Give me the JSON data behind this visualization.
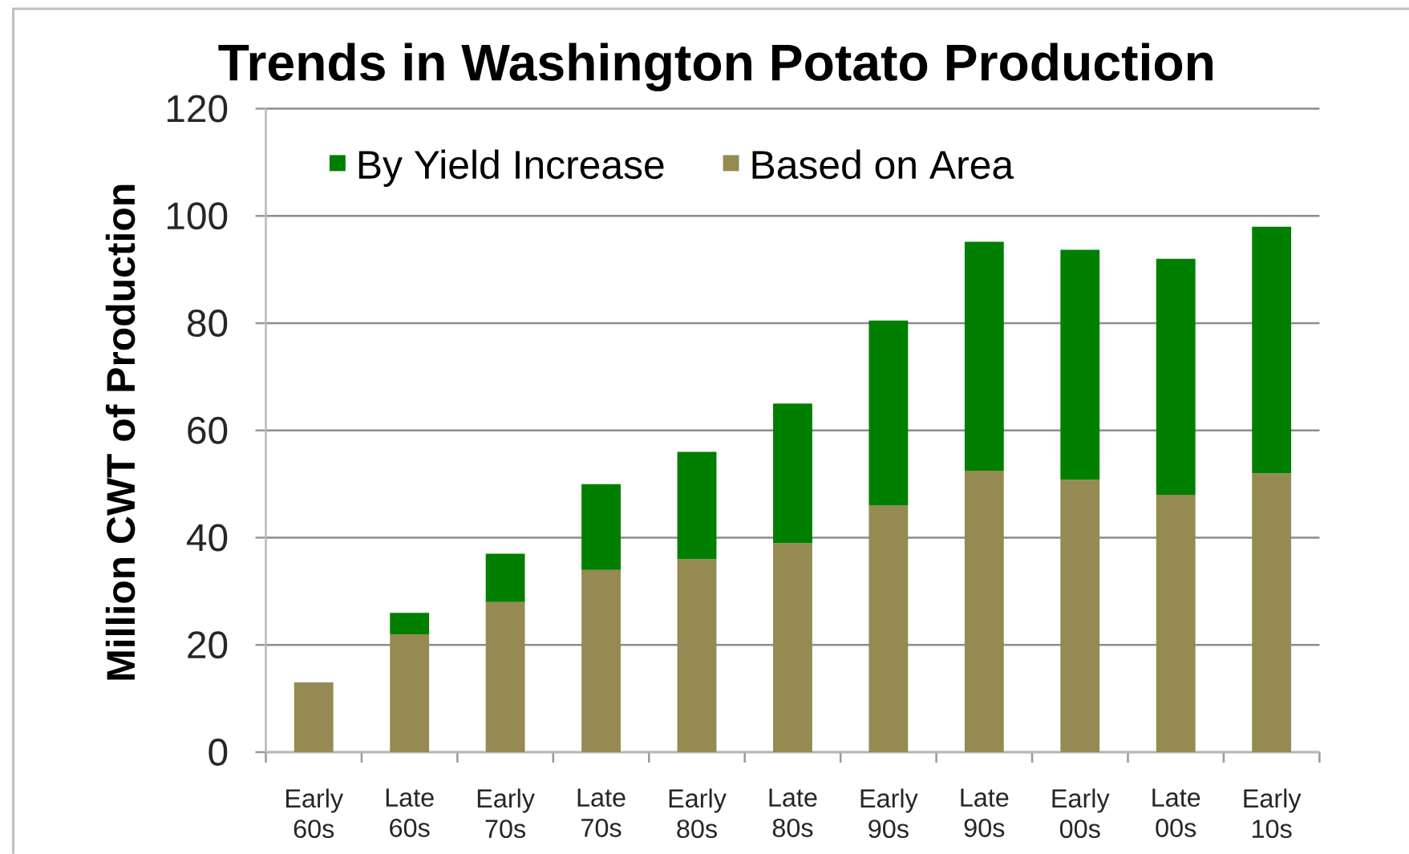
{
  "chart_data": {
    "type": "bar",
    "title": "Trends in Washington Potato Production",
    "ylabel": "Million CWT of Production",
    "categories": [
      "Early 60s",
      "Late 60s",
      "Early 70s",
      "Late 70s",
      "Early 80s",
      "Late 80s",
      "Early 90s",
      "Late 90s",
      "Early 00s",
      "Late 00s",
      "Early 10s"
    ],
    "stacked": true,
    "series": [
      {
        "name": "Based on Area",
        "color": "#958a52",
        "values": [
          13,
          22,
          28,
          34,
          36,
          39,
          46,
          52.5,
          50.8,
          48,
          52
        ]
      },
      {
        "name": "By Yield Increase",
        "color": "#007f00",
        "values": [
          null,
          4,
          9,
          16,
          20,
          26,
          34.5,
          42.7,
          42.9,
          44,
          46
        ]
      }
    ],
    "ylim": [
      0,
      120
    ],
    "yticks": [
      0,
      20,
      40,
      60,
      80,
      100,
      120
    ],
    "grid": "y",
    "legend": "top left"
  }
}
